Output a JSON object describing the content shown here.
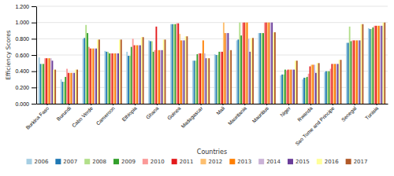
{
  "chart_data": {
    "type": "bar",
    "xlabel": "Countries",
    "ylabel": "Efficiency Scores",
    "categories": [
      "Burkina Faso",
      "Burundi",
      "Cabo Verde",
      "Cameroon",
      "Ethiopia",
      "Ghana",
      "Guinea",
      "Madagascar",
      "Mali",
      "Mauritania",
      "Mauritius",
      "Niger",
      "Rwanda",
      "Sao Tome and Principe",
      "Senegal",
      "Tunisia"
    ],
    "series": [
      {
        "name": "2006",
        "values": [
          0.57,
          0.3,
          0.8,
          0.65,
          0.64,
          0.78,
          0.98,
          0.53,
          0.61,
          0.78,
          0.87,
          0.35,
          0.3,
          0.39,
          0.75,
          0.93
        ]
      },
      {
        "name": "2007",
        "values": [
          0.49,
          0.27,
          0.81,
          0.64,
          0.59,
          0.77,
          0.98,
          0.53,
          0.6,
          0.79,
          0.87,
          0.36,
          0.32,
          0.4,
          0.75,
          0.92
        ]
      },
      {
        "name": "2008",
        "values": [
          0.49,
          0.27,
          0.97,
          0.64,
          0.59,
          0.77,
          0.98,
          0.53,
          0.6,
          1.0,
          0.87,
          0.36,
          0.32,
          0.4,
          0.95,
          0.92
        ]
      },
      {
        "name": "2009",
        "values": [
          0.49,
          0.33,
          0.87,
          0.62,
          0.7,
          0.64,
          0.98,
          0.61,
          0.64,
          0.84,
          0.87,
          0.42,
          0.33,
          0.4,
          0.77,
          0.94
        ]
      },
      {
        "name": "2010",
        "values": [
          0.56,
          0.43,
          0.7,
          0.62,
          0.8,
          0.66,
          0.99,
          0.62,
          0.64,
          1.0,
          1.0,
          0.41,
          0.37,
          0.43,
          0.78,
          0.96
        ]
      },
      {
        "name": "2011",
        "values": [
          0.56,
          0.38,
          0.68,
          0.62,
          0.72,
          0.95,
          0.99,
          0.62,
          0.64,
          1.0,
          1.0,
          0.42,
          0.46,
          0.49,
          0.78,
          0.96
        ]
      },
      {
        "name": "2012",
        "values": [
          0.56,
          0.38,
          0.68,
          0.62,
          0.72,
          0.66,
          0.86,
          0.62,
          1.0,
          1.0,
          1.0,
          0.42,
          0.48,
          0.49,
          0.78,
          0.96
        ]
      },
      {
        "name": "2013",
        "values": [
          0.56,
          0.38,
          0.68,
          0.62,
          0.72,
          0.66,
          0.78,
          0.78,
          0.87,
          1.0,
          1.0,
          0.42,
          0.48,
          0.49,
          0.78,
          0.96
        ]
      },
      {
        "name": "2014",
        "values": [
          0.56,
          0.38,
          0.68,
          0.62,
          0.72,
          0.66,
          0.78,
          0.62,
          0.87,
          0.8,
          1.0,
          0.42,
          0.48,
          0.49,
          0.78,
          0.96
        ]
      },
      {
        "name": "2015",
        "values": [
          0.53,
          0.38,
          0.68,
          0.62,
          0.72,
          0.66,
          0.78,
          0.56,
          0.87,
          0.64,
          1.0,
          0.42,
          0.38,
          0.49,
          0.78,
          0.96
        ]
      },
      {
        "name": "2016",
        "values": [
          0.42,
          0.42,
          0.79,
          0.79,
          0.82,
          0.79,
          0.83,
          0.56,
          0.66,
          0.81,
          0.88,
          0.53,
          0.5,
          0.54,
          0.98,
          1.0
        ]
      },
      {
        "name": "2017",
        "values": [
          0.42,
          0.42,
          0.79,
          0.79,
          0.82,
          0.79,
          0.83,
          0.56,
          0.66,
          0.81,
          0.88,
          0.53,
          0.5,
          0.54,
          0.98,
          1.0
        ]
      }
    ],
    "ylim": [
      0,
      1.2
    ],
    "yticks": [
      {
        "value": 0,
        "label": "0.000"
      },
      {
        "value": 0.2,
        "label": "0.200"
      },
      {
        "value": 0.4,
        "label": "0.400"
      },
      {
        "value": 0.6,
        "label": "0.600"
      },
      {
        "value": 0.8,
        "label": "0.800"
      },
      {
        "value": 1.0,
        "label": "1.000"
      },
      {
        "value": 1.2,
        "label": "1.200"
      }
    ],
    "grid": true,
    "legend": "bottom"
  }
}
